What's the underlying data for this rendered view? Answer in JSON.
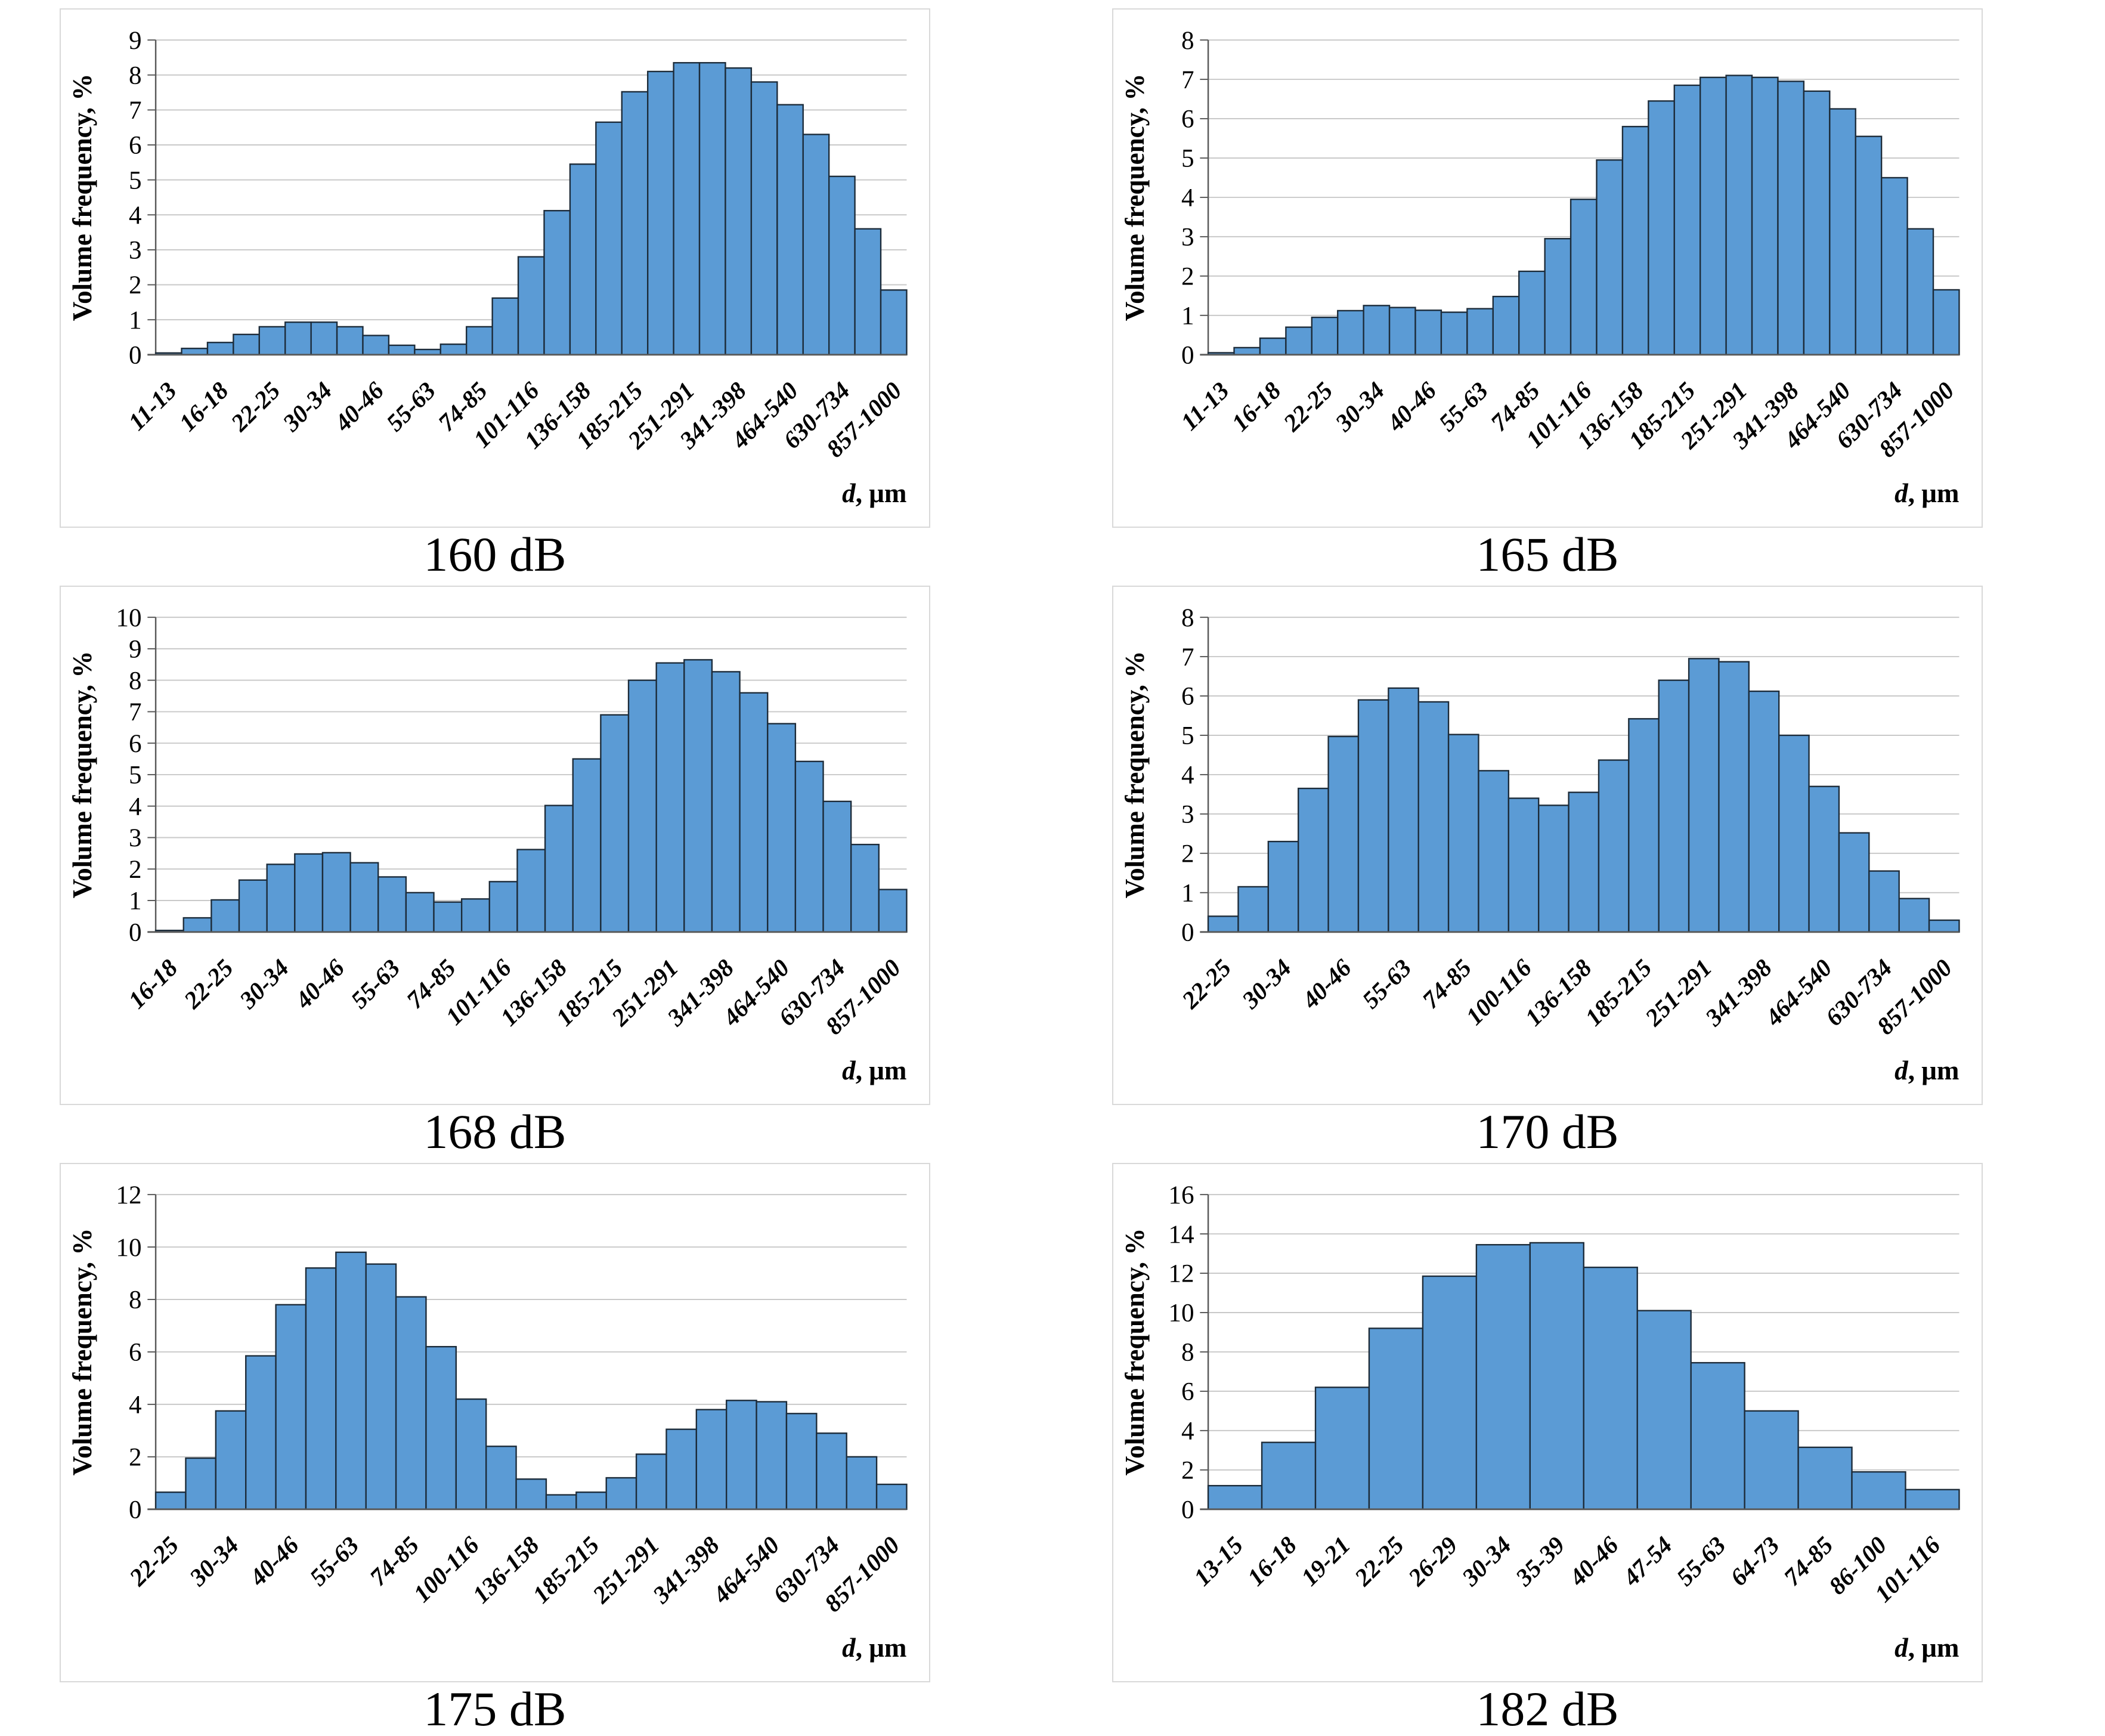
{
  "style": {
    "bar_fill": "#5B9BD5",
    "bar_stroke": "#1C2B39",
    "grid_color": "#C9C9C9",
    "axis_color": "#595959",
    "panel_border": "#D9D9D9",
    "text_color": "#000000"
  },
  "chart_data": [
    {
      "type": "bar",
      "title": "160 dB",
      "ylabel": "Volume frequency, %",
      "xlabel": "d, μm",
      "ylim": [
        0,
        9
      ],
      "ytick_step": 1,
      "grid": true,
      "label_every": 2,
      "categories": [
        "11-13",
        "16-18",
        "22-25",
        "30-34",
        "40-46",
        "55-63",
        "74-85",
        "101-116",
        "136-158",
        "185-215",
        "251-291",
        "341-398",
        "464-540",
        "630-734",
        "857-1000"
      ],
      "values": [
        0.05,
        0.18,
        0.35,
        0.58,
        0.8,
        0.93,
        0.93,
        0.8,
        0.55,
        0.27,
        0.15,
        0.3,
        0.8,
        1.62,
        2.8,
        4.12,
        5.45,
        6.65,
        7.52,
        8.1,
        8.35,
        8.35,
        8.2,
        7.8,
        7.15,
        6.3,
        5.1,
        3.6,
        1.85
      ]
    },
    {
      "type": "bar",
      "title": "165 dB",
      "ylabel": "Volume frequency, %",
      "xlabel": "d, μm",
      "ylim": [
        0,
        8
      ],
      "ytick_step": 1,
      "grid": true,
      "label_every": 2,
      "categories": [
        "11-13",
        "16-18",
        "22-25",
        "30-34",
        "40-46",
        "55-63",
        "74-85",
        "101-116",
        "136-158",
        "185-215",
        "251-291",
        "341-398",
        "464-540",
        "630-734",
        "857-1000"
      ],
      "values": [
        0.05,
        0.18,
        0.42,
        0.7,
        0.95,
        1.12,
        1.25,
        1.2,
        1.13,
        1.08,
        1.17,
        1.48,
        2.12,
        2.95,
        3.95,
        4.95,
        5.8,
        6.45,
        6.85,
        7.05,
        7.1,
        7.05,
        6.95,
        6.7,
        6.25,
        5.55,
        4.5,
        3.2,
        1.65
      ]
    },
    {
      "type": "bar",
      "title": "168 dB",
      "ylabel": "Volume frequency, %",
      "xlabel": "d, μm",
      "ylim": [
        0,
        10
      ],
      "ytick_step": 1,
      "grid": true,
      "label_every": 2,
      "categories": [
        "16-18",
        "22-25",
        "30-34",
        "40-46",
        "55-63",
        "74-85",
        "101-116",
        "136-158",
        "185-215",
        "251-291",
        "341-398",
        "464-540",
        "630-734",
        "857-1000"
      ],
      "values": [
        0.05,
        0.45,
        1.02,
        1.65,
        2.15,
        2.48,
        2.52,
        2.2,
        1.75,
        1.25,
        0.95,
        1.05,
        1.6,
        2.62,
        4.02,
        5.5,
        6.9,
        8.0,
        8.55,
        8.65,
        8.27,
        7.6,
        6.62,
        5.42,
        4.15,
        2.78,
        1.35
      ]
    },
    {
      "type": "bar",
      "title": "170 dB",
      "ylabel": "Volume frequency, %",
      "xlabel": "d, μm",
      "ylim": [
        0,
        8
      ],
      "ytick_step": 1,
      "grid": true,
      "label_every": 2,
      "categories": [
        "22-25",
        "30-34",
        "40-46",
        "55-63",
        "74-85",
        "100-116",
        "136-158",
        "185-215",
        "251-291",
        "341-398",
        "464-540",
        "630-734",
        "857-1000"
      ],
      "values": [
        0.4,
        1.15,
        2.3,
        3.65,
        4.97,
        5.9,
        6.2,
        5.85,
        5.02,
        4.1,
        3.4,
        3.22,
        3.55,
        4.37,
        5.42,
        6.4,
        6.95,
        6.87,
        6.12,
        5.0,
        3.7,
        2.52,
        1.55,
        0.85,
        0.3
      ]
    },
    {
      "type": "bar",
      "title": "175 dB",
      "ylabel": "Volume frequency, %",
      "xlabel": "d, μm",
      "ylim": [
        0,
        12
      ],
      "ytick_step": 2,
      "grid": true,
      "label_every": 2,
      "categories": [
        "22-25",
        "30-34",
        "40-46",
        "55-63",
        "74-85",
        "100-116",
        "136-158",
        "185-215",
        "251-291",
        "341-398",
        "464-540",
        "630-734",
        "857-1000"
      ],
      "values": [
        0.65,
        1.95,
        3.75,
        5.85,
        7.8,
        9.2,
        9.8,
        9.35,
        8.1,
        6.2,
        4.2,
        2.4,
        1.15,
        0.55,
        0.65,
        1.2,
        2.1,
        3.05,
        3.8,
        4.15,
        4.1,
        3.65,
        2.9,
        2.0,
        0.95
      ]
    },
    {
      "type": "bar",
      "title": "182 dB",
      "ylabel": "Volume frequency, %",
      "xlabel": "d, μm",
      "ylim": [
        0,
        16
      ],
      "ytick_step": 2,
      "grid": true,
      "label_every": 1,
      "categories": [
        "13-15",
        "16-18",
        "19-21",
        "22-25",
        "26-29",
        "30-34",
        "35-39",
        "40-46",
        "47-54",
        "55-63",
        "64-73",
        "74-85",
        "86-100",
        "101-116"
      ],
      "values": [
        1.2,
        3.4,
        6.2,
        9.2,
        11.85,
        13.45,
        13.55,
        12.3,
        10.1,
        7.45,
        5.0,
        3.15,
        1.9,
        1.0
      ]
    }
  ]
}
